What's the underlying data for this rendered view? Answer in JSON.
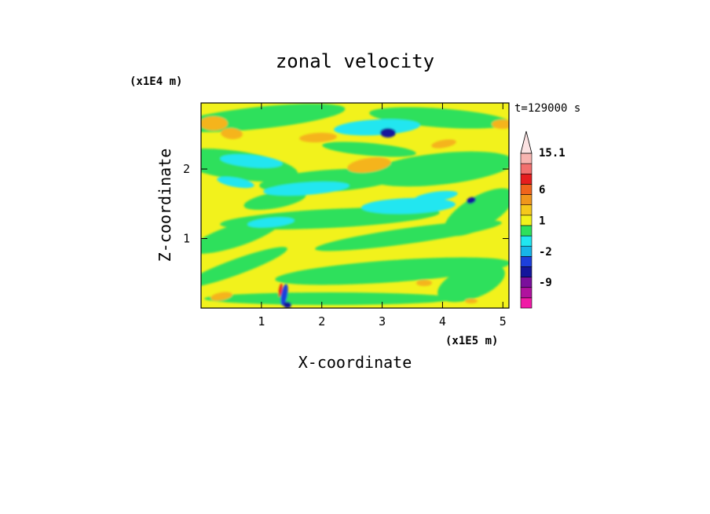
{
  "chart_data": {
    "type": "heatmap",
    "title": "zonal velocity",
    "xlabel": "X-coordinate",
    "ylabel": "Z-coordinate",
    "x_unit": "(x1E5 m)",
    "y_unit": "(x1E4 m)",
    "time_label": "t=129000 s",
    "xlim": [
      0,
      5.1
    ],
    "ylim": [
      0,
      2.95
    ],
    "x_ticks": [
      {
        "value": 1,
        "label": "1"
      },
      {
        "value": 2,
        "label": "2"
      },
      {
        "value": 3,
        "label": "3"
      },
      {
        "value": 4,
        "label": "4"
      },
      {
        "value": 5,
        "label": "5"
      }
    ],
    "y_ticks": [
      {
        "value": 1,
        "label": "1"
      },
      {
        "value": 2,
        "label": "2"
      }
    ],
    "colorbar": {
      "levels": [
        {
          "color": "#f01aa6",
          "label": ""
        },
        {
          "color": "#b0129e",
          "label": ""
        },
        {
          "color": "#7b0f9c",
          "label": "-9"
        },
        {
          "color": "#14169c",
          "label": ""
        },
        {
          "color": "#1d40dc",
          "label": ""
        },
        {
          "color": "#17b5e8",
          "label": "-2"
        },
        {
          "color": "#21e6f0",
          "label": ""
        },
        {
          "color": "#2ee05c",
          "label": ""
        },
        {
          "color": "#f2f21c",
          "label": "1"
        },
        {
          "color": "#f5c81c",
          "label": ""
        },
        {
          "color": "#f0961c",
          "label": ""
        },
        {
          "color": "#f0641c",
          "label": "6"
        },
        {
          "color": "#e61e1e",
          "label": ""
        },
        {
          "color": "#f2706e",
          "label": ""
        },
        {
          "color": "#f7b4b0",
          "label": "15.1"
        }
      ],
      "max_label": "15.1"
    },
    "field_colors": {
      "yellow": "#f2f21c",
      "green": "#2ee05c",
      "cyan": "#21e6f0",
      "orange": "#f5b41c",
      "blue": "#1d40dc",
      "navy": "#14169c",
      "red": "#e61e1e"
    }
  }
}
